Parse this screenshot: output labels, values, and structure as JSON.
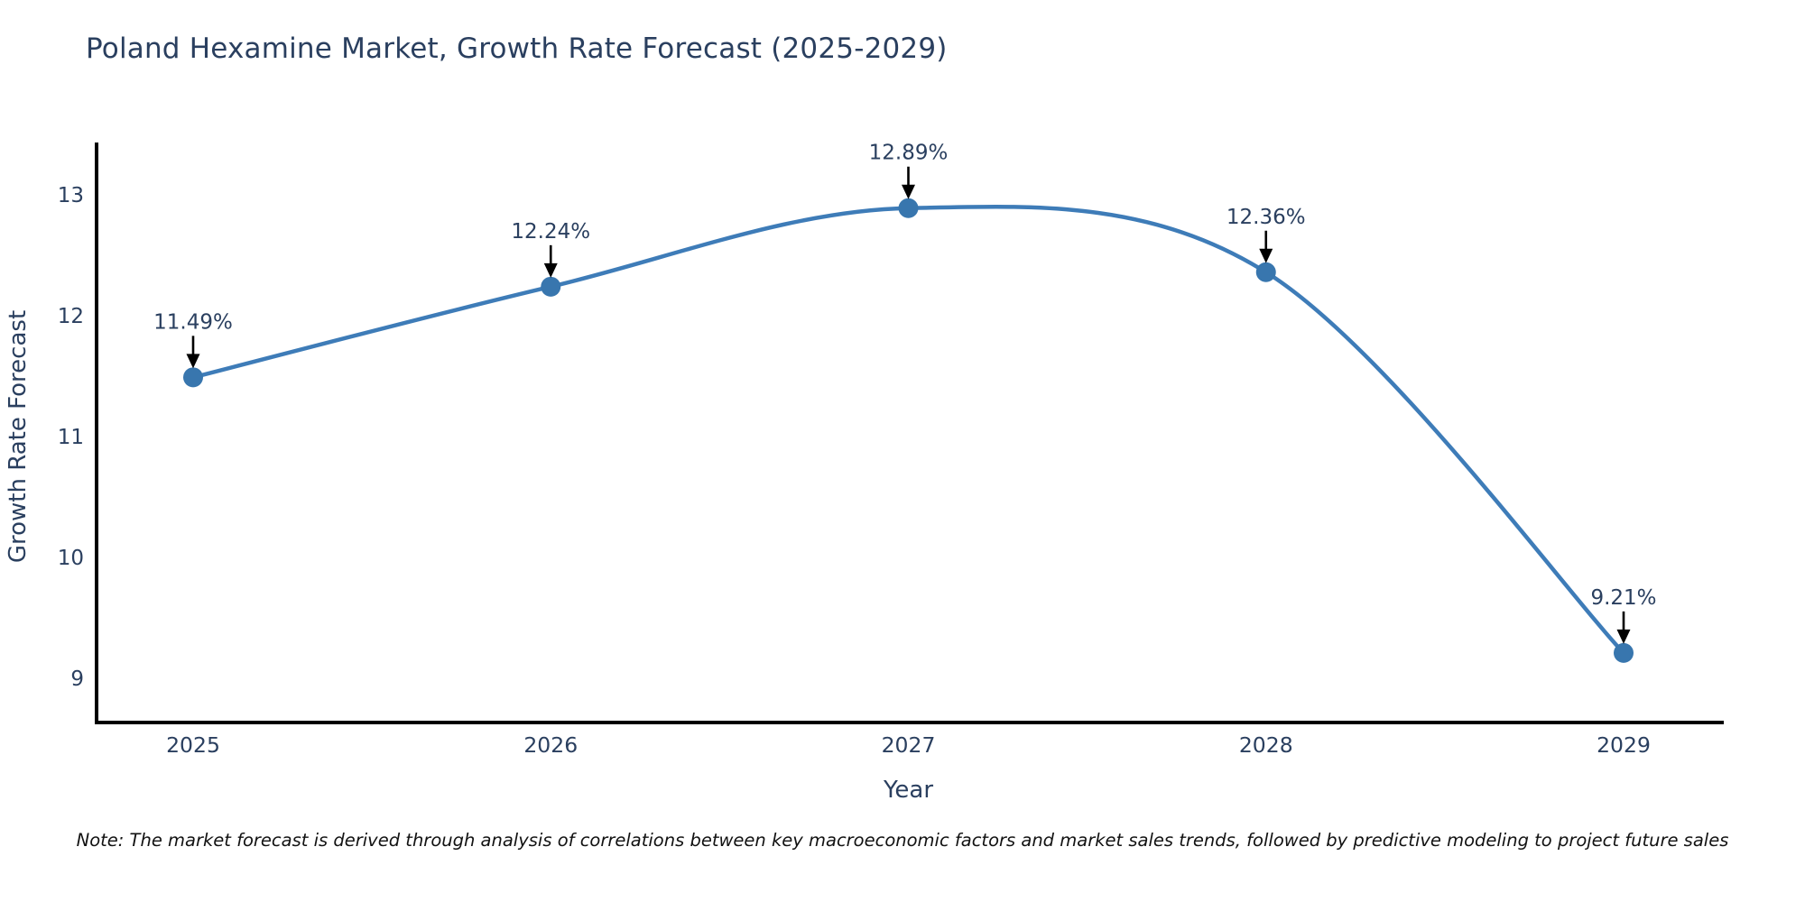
{
  "title": "Poland Hexamine Market, Growth Rate Forecast (2025-2029)",
  "note": "Note: The market forecast is derived through analysis of correlations between key macroeconomic factors and market sales trends, followed by predictive modeling to project future sales",
  "chart_data": {
    "type": "line",
    "title": "Poland Hexamine Market, Growth Rate Forecast (2025-2029)",
    "line_shape": "spline",
    "x": [
      2025,
      2026,
      2027,
      2028,
      2029
    ],
    "xticks": [
      "2025",
      "2026",
      "2027",
      "2028",
      "2029"
    ],
    "series": [
      {
        "name": "Growth Rate Forecast",
        "values": [
          11.49,
          12.24,
          12.89,
          12.36,
          9.21
        ]
      }
    ],
    "point_labels": [
      "11.49%",
      "12.24%",
      "12.89%",
      "12.36%",
      "9.21%"
    ],
    "xlabel": "Year",
    "ylabel": "Growth Rate Forecast",
    "yticks": [
      13,
      12,
      11,
      10,
      9
    ],
    "ylim": [
      8.6,
      13.45
    ],
    "grid": false,
    "legend": "none",
    "annotations_have_arrows": true,
    "colors": {
      "line": "#3e7cb8",
      "marker": "#3876ae",
      "axis_line": "#000000",
      "tick_text": "#2a3f5f",
      "axis_title_text": "#2a3f5f",
      "annotation_text": "#2a3f5f",
      "annotation_arrow": "#000000",
      "title_text": "#2a3f5f",
      "note_text": "#121212",
      "background": "#ffffff"
    }
  }
}
